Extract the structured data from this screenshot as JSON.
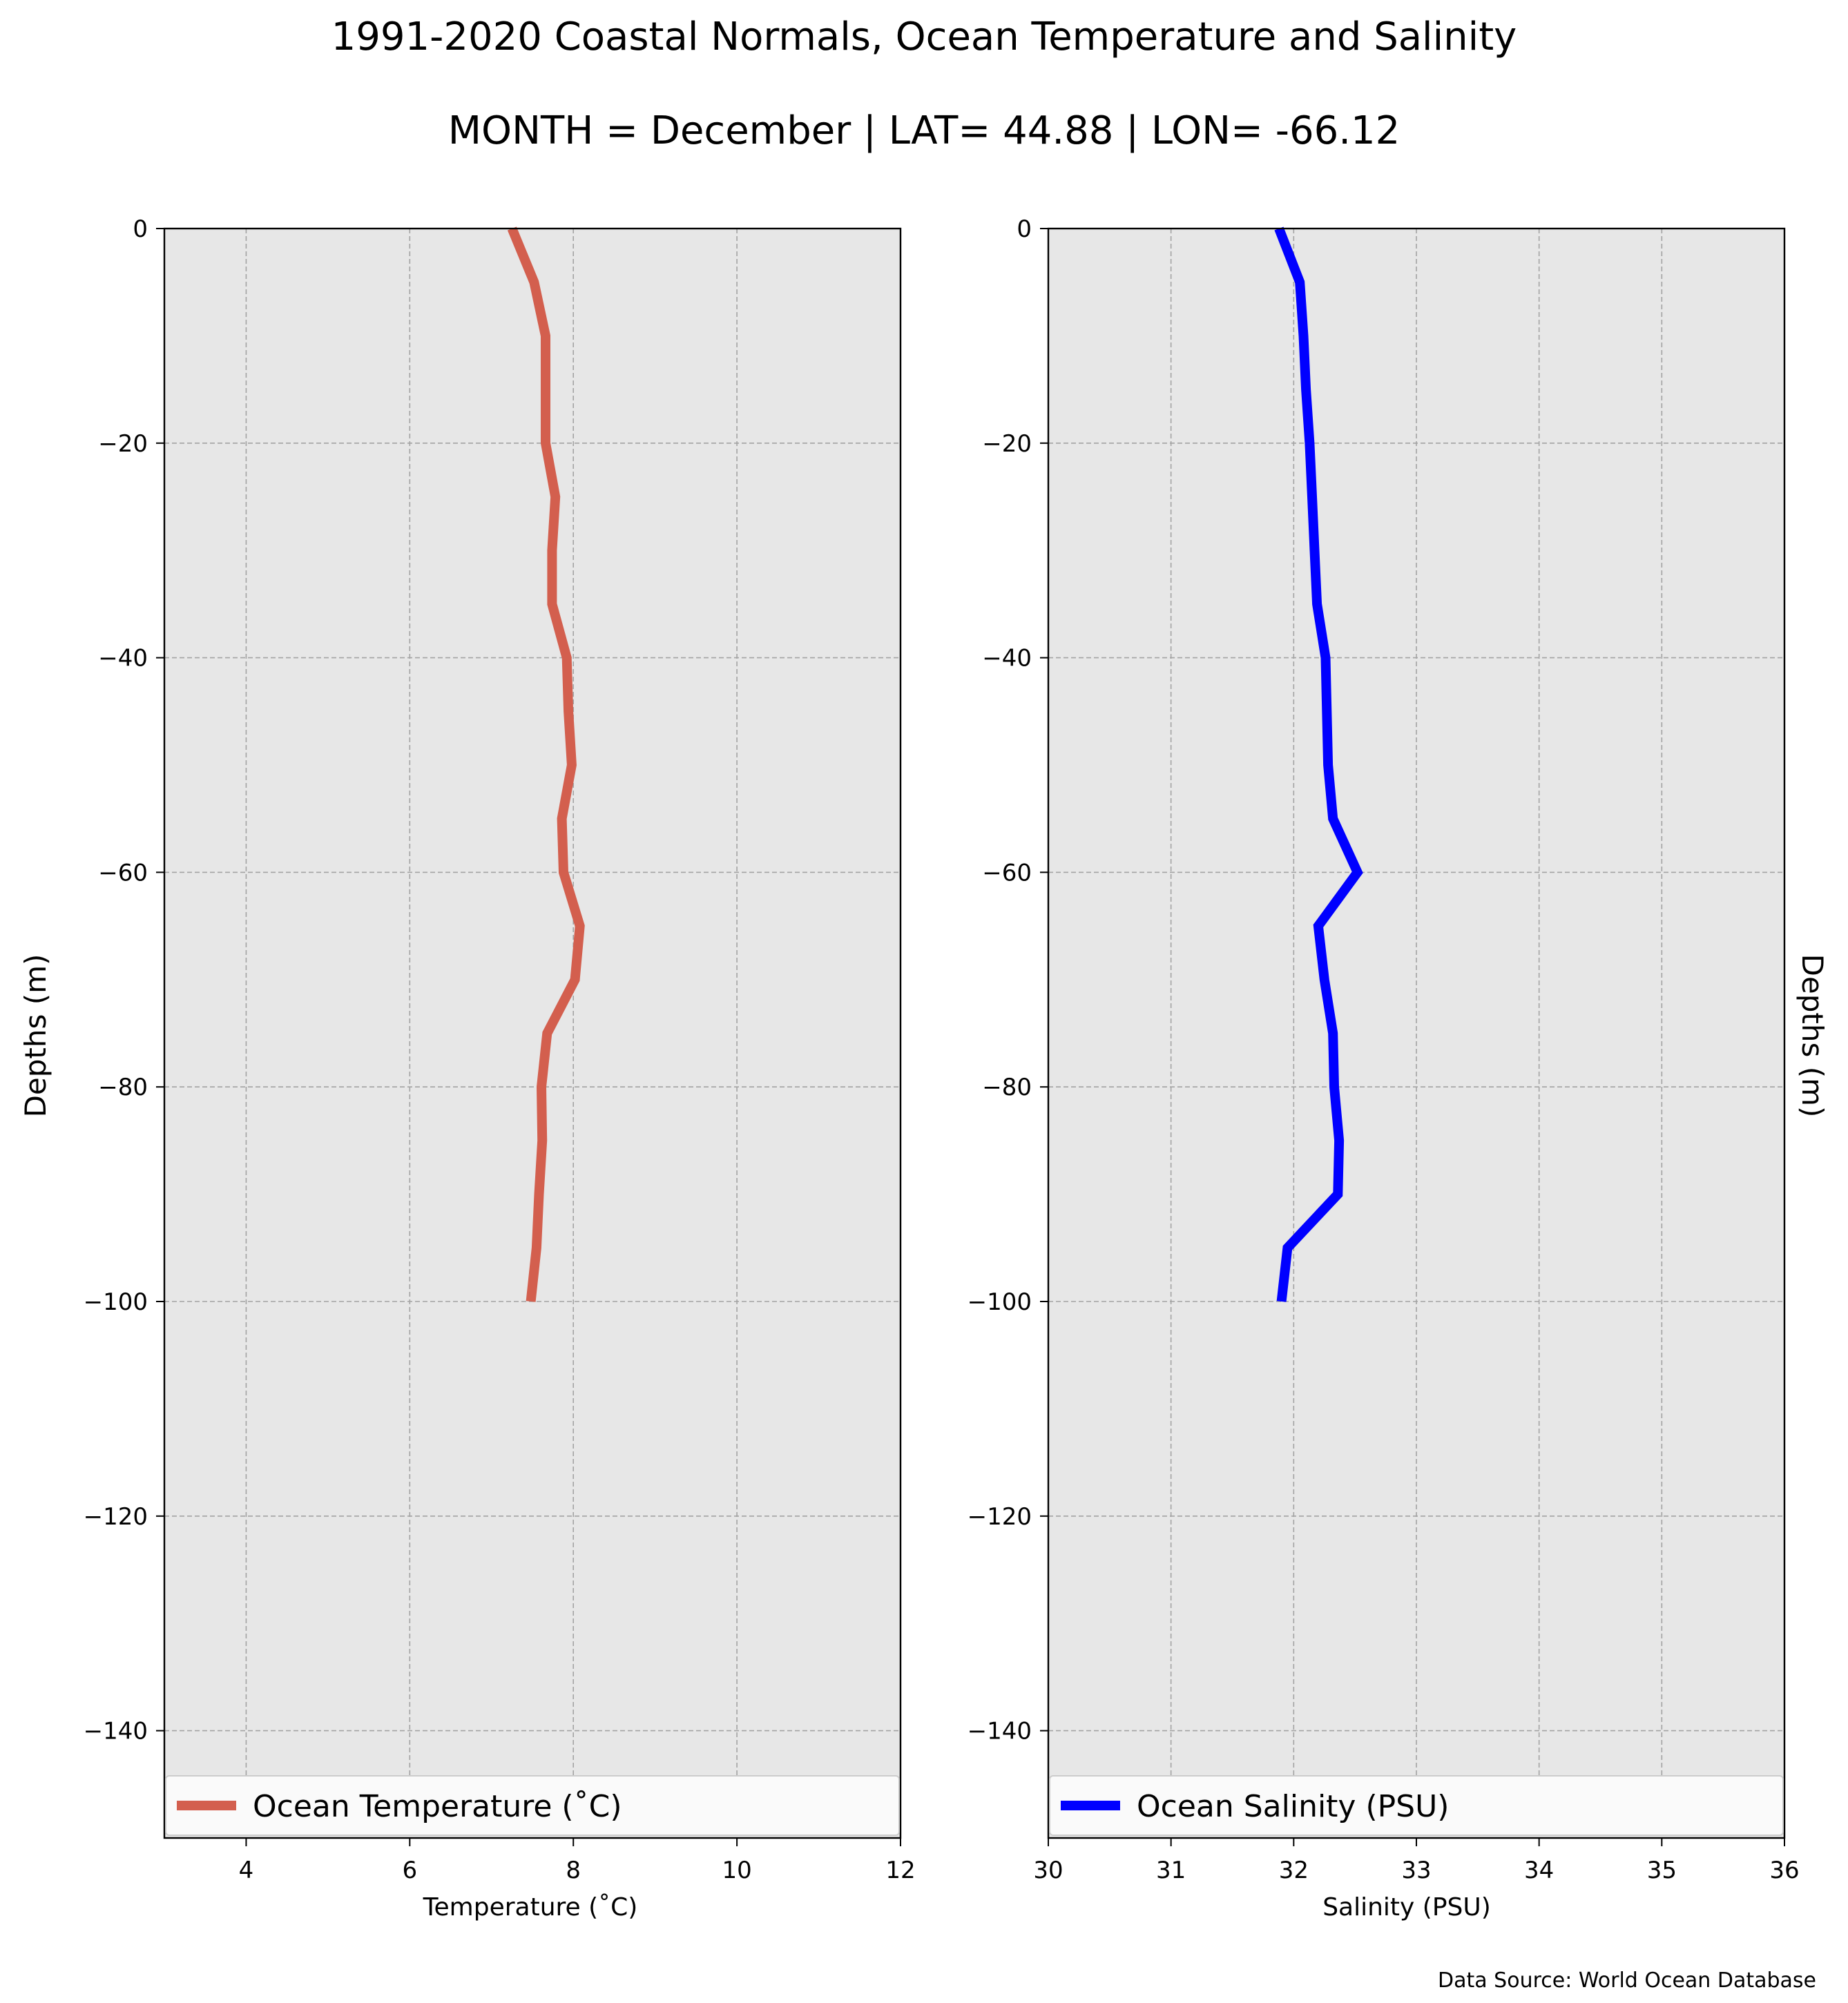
{
  "figure": {
    "title": "1991-2020 Coastal Normals, Ocean Temperature and Salinity",
    "subtitle": "MONTH = December | LAT= 44.88 | LON= -66.12",
    "source": "Data Source: World Ocean Database"
  },
  "chart_data": [
    {
      "type": "line",
      "orientation": "vertical-profile",
      "xlabel": "Temperature ($^\\circ$C)",
      "xlabel_display": "Temperature (˚C)",
      "ylabel": "Depths (m)",
      "xlim": [
        3,
        12
      ],
      "ylim": [
        -150,
        0
      ],
      "xticks": [
        4,
        6,
        8,
        10,
        12
      ],
      "yticks": [
        0,
        -20,
        -40,
        -60,
        -80,
        -100,
        -120,
        -140
      ],
      "grid": true,
      "legend": "bottom",
      "series": [
        {
          "name": "Ocean Temperature (˚C)",
          "color": "#d35f4e",
          "x": [
            7.25,
            7.52,
            7.66,
            7.66,
            7.66,
            7.78,
            7.74,
            7.74,
            7.92,
            7.94,
            7.98,
            7.86,
            7.88,
            8.08,
            8.02,
            7.68,
            7.61,
            7.62,
            7.58,
            7.55,
            7.48
          ],
          "y": [
            0,
            -5,
            -10,
            -15,
            -20,
            -25,
            -30,
            -35,
            -40,
            -45,
            -50,
            -55,
            -60,
            -65,
            -70,
            -75,
            -80,
            -85,
            -90,
            -95,
            -100
          ]
        }
      ]
    },
    {
      "type": "line",
      "orientation": "vertical-profile",
      "xlabel": "Salinity (PSU)",
      "ylabel": "Depths (m)",
      "xlim": [
        30,
        36
      ],
      "ylim": [
        -150,
        0
      ],
      "xticks": [
        30,
        31,
        32,
        33,
        34,
        35,
        36
      ],
      "yticks": [
        0,
        -20,
        -40,
        -60,
        -80,
        -100,
        -120,
        -140
      ],
      "grid": true,
      "legend": "bottom",
      "series": [
        {
          "name": "Ocean Salinity (PSU)",
          "color": "#0000ff",
          "x": [
            31.88,
            32.05,
            32.08,
            32.1,
            32.13,
            32.15,
            32.17,
            32.19,
            32.26,
            32.27,
            32.28,
            32.32,
            32.52,
            32.2,
            32.25,
            32.32,
            32.33,
            32.37,
            32.36,
            31.95,
            31.9
          ],
          "y": [
            0,
            -5,
            -10,
            -15,
            -20,
            -25,
            -30,
            -35,
            -40,
            -45,
            -50,
            -55,
            -60,
            -65,
            -70,
            -75,
            -80,
            -85,
            -90,
            -95,
            -100
          ]
        }
      ]
    }
  ]
}
